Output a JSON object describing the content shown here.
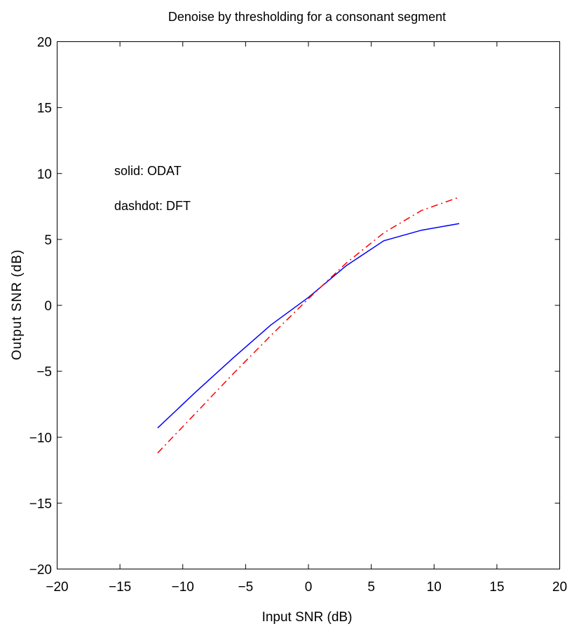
{
  "chart_data": {
    "type": "line",
    "title": "Denoise by thresholding for a consonant segment",
    "xlabel": "Input SNR (dB)",
    "ylabel": "Output SNR (dB)",
    "xlim": [
      -20,
      20
    ],
    "ylim": [
      -20,
      20
    ],
    "xticks": [
      -20,
      -15,
      -10,
      -5,
      0,
      5,
      10,
      15,
      20
    ],
    "yticks": [
      -20,
      -15,
      -10,
      -5,
      0,
      5,
      10,
      15,
      20
    ],
    "xtick_labels": [
      "−20",
      "−15",
      "−10",
      "−5",
      "0",
      "5",
      "10",
      "15",
      "20"
    ],
    "ytick_labels": [
      "−20",
      "−15",
      "−10",
      "−5",
      "0",
      "5",
      "10",
      "15",
      "20"
    ],
    "grid": false,
    "annotations": [
      "solid: ODAT",
      "dashdot: DFT"
    ],
    "series": [
      {
        "style": "solid",
        "color": "#0000ff",
        "x": [
          -12,
          -9,
          -6,
          -3,
          0,
          3,
          6,
          9,
          12
        ],
        "y": [
          -9.3,
          -6.6,
          -4.0,
          -1.5,
          0.6,
          3.0,
          4.9,
          5.7,
          6.2
        ]
      },
      {
        "style": "dashdot",
        "color": "#ff0000",
        "x": [
          -12,
          -9,
          -6,
          -3,
          0,
          3,
          6,
          9,
          12
        ],
        "y": [
          -11.2,
          -8.2,
          -5.2,
          -2.3,
          0.5,
          3.2,
          5.5,
          7.2,
          8.2
        ]
      }
    ]
  }
}
